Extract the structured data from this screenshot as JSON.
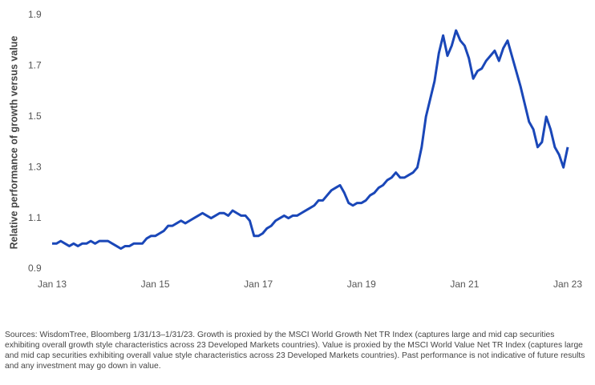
{
  "chart_data": {
    "type": "line",
    "y_label": "Relative performance of growth versus value",
    "footnote": "Sources: WisdomTree, Bloomberg 1/31/13–1/31/23. Growth is proxied by the MSCI World Growth Net TR Index (captures large and mid cap securities exhibiting overall growth style characteristics across 23 Developed Markets countries). Value is proxied by the MSCI World Value Net TR Index (captures large and mid cap securities exhibiting overall value style characteristics across 23 Developed Markets countries). Past performance is not indicative of future results and any investment may go down in value.",
    "x": [
      "2013-01",
      "2013-02",
      "2013-03",
      "2013-04",
      "2013-05",
      "2013-06",
      "2013-07",
      "2013-08",
      "2013-09",
      "2013-10",
      "2013-11",
      "2013-12",
      "2014-01",
      "2014-02",
      "2014-03",
      "2014-04",
      "2014-05",
      "2014-06",
      "2014-07",
      "2014-08",
      "2014-09",
      "2014-10",
      "2014-11",
      "2014-12",
      "2015-01",
      "2015-02",
      "2015-03",
      "2015-04",
      "2015-05",
      "2015-06",
      "2015-07",
      "2015-08",
      "2015-09",
      "2015-10",
      "2015-11",
      "2015-12",
      "2016-01",
      "2016-02",
      "2016-03",
      "2016-04",
      "2016-05",
      "2016-06",
      "2016-07",
      "2016-08",
      "2016-09",
      "2016-10",
      "2016-11",
      "2016-12",
      "2017-01",
      "2017-02",
      "2017-03",
      "2017-04",
      "2017-05",
      "2017-06",
      "2017-07",
      "2017-08",
      "2017-09",
      "2017-10",
      "2017-11",
      "2017-12",
      "2018-01",
      "2018-02",
      "2018-03",
      "2018-04",
      "2018-05",
      "2018-06",
      "2018-07",
      "2018-08",
      "2018-09",
      "2018-10",
      "2018-11",
      "2018-12",
      "2019-01",
      "2019-02",
      "2019-03",
      "2019-04",
      "2019-05",
      "2019-06",
      "2019-07",
      "2019-08",
      "2019-09",
      "2019-10",
      "2019-11",
      "2019-12",
      "2020-01",
      "2020-02",
      "2020-03",
      "2020-04",
      "2020-05",
      "2020-06",
      "2020-07",
      "2020-08",
      "2020-09",
      "2020-10",
      "2020-11",
      "2020-12",
      "2021-01",
      "2021-02",
      "2021-03",
      "2021-04",
      "2021-05",
      "2021-06",
      "2021-07",
      "2021-08",
      "2021-09",
      "2021-10",
      "2021-11",
      "2021-12",
      "2022-01",
      "2022-02",
      "2022-03",
      "2022-04",
      "2022-05",
      "2022-06",
      "2022-07",
      "2022-08",
      "2022-09",
      "2022-10",
      "2022-11",
      "2022-12",
      "2023-01"
    ],
    "series": [
      {
        "color": "#1a47b8",
        "values": [
          1.0,
          1.0,
          1.01,
          1.0,
          0.99,
          1.0,
          0.99,
          1.0,
          1.0,
          1.01,
          1.0,
          1.01,
          1.01,
          1.01,
          1.0,
          0.99,
          0.98,
          0.99,
          0.99,
          1.0,
          1.0,
          1.0,
          1.02,
          1.03,
          1.03,
          1.04,
          1.05,
          1.07,
          1.07,
          1.08,
          1.09,
          1.08,
          1.09,
          1.1,
          1.11,
          1.12,
          1.11,
          1.1,
          1.11,
          1.12,
          1.12,
          1.11,
          1.13,
          1.12,
          1.11,
          1.11,
          1.09,
          1.03,
          1.03,
          1.04,
          1.06,
          1.07,
          1.09,
          1.1,
          1.11,
          1.1,
          1.11,
          1.11,
          1.12,
          1.13,
          1.14,
          1.15,
          1.17,
          1.17,
          1.19,
          1.21,
          1.22,
          1.23,
          1.2,
          1.16,
          1.15,
          1.16,
          1.16,
          1.17,
          1.19,
          1.2,
          1.22,
          1.23,
          1.25,
          1.26,
          1.28,
          1.26,
          1.26,
          1.27,
          1.28,
          1.3,
          1.38,
          1.5,
          1.57,
          1.64,
          1.75,
          1.82,
          1.74,
          1.78,
          1.84,
          1.8,
          1.78,
          1.73,
          1.65,
          1.68,
          1.69,
          1.72,
          1.74,
          1.76,
          1.72,
          1.77,
          1.8,
          1.74,
          1.68,
          1.62,
          1.55,
          1.48,
          1.45,
          1.38,
          1.4,
          1.5,
          1.45,
          1.38,
          1.35,
          1.3,
          1.38
        ]
      }
    ],
    "xlim": [
      "2013-01",
      "2023-01"
    ],
    "xticks": [
      {
        "value": "2013-01",
        "label": "Jan 13"
      },
      {
        "value": "2015-01",
        "label": "Jan 15"
      },
      {
        "value": "2017-01",
        "label": "Jan 17"
      },
      {
        "value": "2019-01",
        "label": "Jan 19"
      },
      {
        "value": "2021-01",
        "label": "Jan 21"
      },
      {
        "value": "2023-01",
        "label": "Jan 23"
      }
    ],
    "ylim": [
      0.9,
      1.9
    ],
    "yticks": [
      0.9,
      1.1,
      1.3,
      1.5,
      1.7,
      1.9
    ],
    "grid": false
  }
}
